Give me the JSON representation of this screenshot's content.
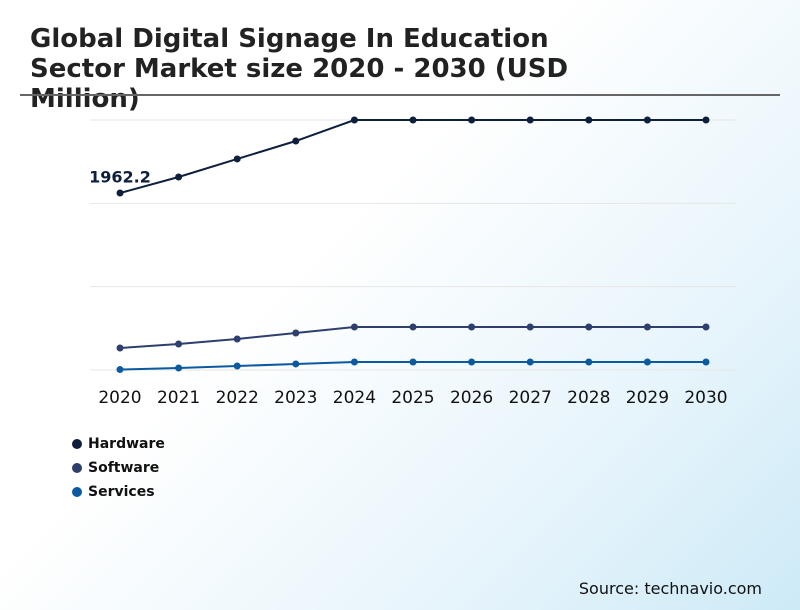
{
  "chart_data": {
    "type": "line",
    "title": "Global Digital Signage In Education Sector Market size 2020 - 2030 (USD Million)",
    "source": "Source: technavio.com",
    "categories": [
      "2020",
      "2021",
      "2022",
      "2023",
      "2024",
      "2025",
      "2026",
      "2027",
      "2028",
      "2029",
      "2030"
    ],
    "series": [
      {
        "name": "Hardware",
        "color": "#0d1f3c",
        "values": [
          1962.2,
          2140,
          2340,
          2539,
          2772,
          2772,
          2772,
          2772,
          2772,
          2772,
          2772
        ]
      },
      {
        "name": "Software",
        "color": "#2e3f6e",
        "values": [
          244,
          288,
          344,
          410,
          477,
          477,
          477,
          477,
          477,
          477,
          477
        ]
      },
      {
        "name": "Services",
        "color": "#0b5aa0",
        "values": [
          5,
          22,
          44,
          67,
          89,
          89,
          89,
          89,
          89,
          89,
          89
        ]
      }
    ],
    "ylim": [
      0,
      2772
    ],
    "yticks": [
      0,
      924,
      1848,
      2772
    ],
    "grid": true
  }
}
